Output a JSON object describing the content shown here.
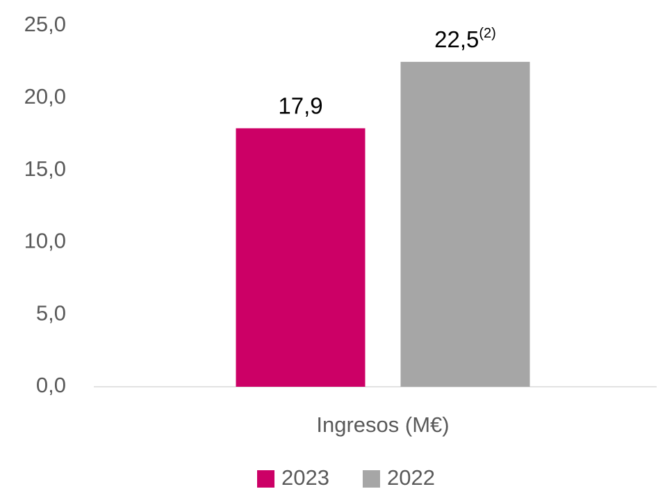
{
  "chart_data": {
    "type": "bar",
    "categories": [
      "Ingresos (M€)"
    ],
    "series": [
      {
        "name": "2023",
        "color": "#cc0066",
        "values": [
          17.9
        ],
        "value_labels": [
          "17,9"
        ]
      },
      {
        "name": "2022",
        "color": "#a6a6a6",
        "values": [
          22.5
        ],
        "value_labels": [
          "22,5"
        ],
        "value_label_notes": [
          "(2)"
        ]
      }
    ],
    "ylim": [
      0,
      25
    ],
    "yticks": [
      {
        "value": 0,
        "label": "0,0"
      },
      {
        "value": 5,
        "label": "5,0"
      },
      {
        "value": 10,
        "label": "10,0"
      },
      {
        "value": 15,
        "label": "15,0"
      },
      {
        "value": 20,
        "label": "20,0"
      },
      {
        "value": 25,
        "label": "25,0"
      }
    ],
    "grid": false,
    "legend": "bottom"
  }
}
